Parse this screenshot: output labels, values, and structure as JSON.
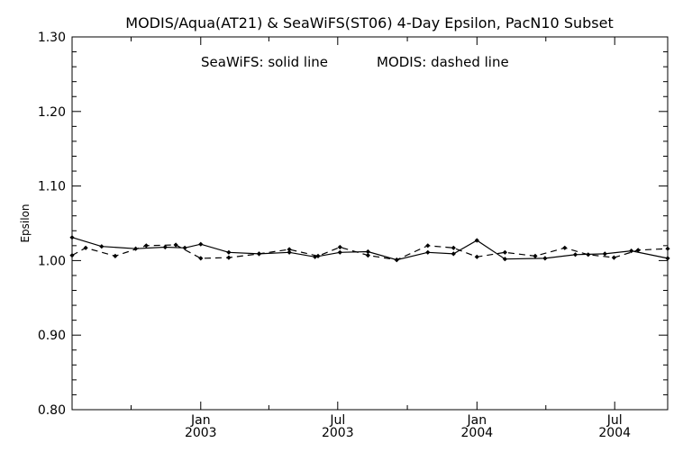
{
  "chart_data": {
    "type": "line",
    "title": "MODIS/Aqua(AT21) & SeaWiFS(ST06) 4-Day Epsilon, PacN10 Subset",
    "annotations": [
      "SeaWiFS: solid line",
      "MODIS: dashed line"
    ],
    "ylabel": "Epsilon",
    "ylim": [
      0.8,
      1.3
    ],
    "y_ticks": [
      "0.80",
      "0.90",
      "1.00",
      "1.10",
      "1.20",
      "1.30"
    ],
    "xlim": [
      "2002-07-15",
      "2004-09-09"
    ],
    "x_ticks": [
      {
        "date": "2003-01-01",
        "month": "Jan",
        "year": "2003"
      },
      {
        "date": "2003-07-01",
        "month": "Jul",
        "year": "2003"
      },
      {
        "date": "2004-01-01",
        "month": "Jan",
        "year": "2004"
      },
      {
        "date": "2004-07-01",
        "month": "Jul",
        "year": "2004"
      }
    ],
    "x_minor_ticks": [
      "2002-10-01",
      "2003-04-01",
      "2003-10-01",
      "2004-04-01"
    ],
    "series": [
      {
        "name": "SeaWiFS",
        "style": "solid",
        "x": [
          "2002-07-15",
          "2002-08-23",
          "2002-10-07",
          "2002-11-15",
          "2002-12-11",
          "2003-01-01",
          "2003-02-07",
          "2003-03-19",
          "2003-04-28",
          "2003-06-01",
          "2003-07-04",
          "2003-08-10",
          "2003-09-17",
          "2003-10-28",
          "2003-12-01",
          "2004-01-01",
          "2004-02-07",
          "2004-03-31",
          "2004-05-10",
          "2004-06-18",
          "2004-07-23",
          "2004-09-09"
        ],
        "y": [
          1.031,
          1.019,
          1.016,
          1.018,
          1.017,
          1.022,
          1.011,
          1.009,
          1.011,
          1.005,
          1.011,
          1.012,
          1.001,
          1.011,
          1.009,
          1.027,
          1.002,
          1.003,
          1.008,
          1.009,
          1.013,
          1.003
        ]
      },
      {
        "name": "MODIS",
        "style": "dashed",
        "x": [
          "2002-07-15",
          "2002-08-02",
          "2002-09-10",
          "2002-10-21",
          "2002-11-29",
          "2003-01-01",
          "2003-02-07",
          "2003-03-19",
          "2003-04-28",
          "2003-06-05",
          "2003-07-04",
          "2003-08-10",
          "2003-09-17",
          "2003-10-28",
          "2003-12-01",
          "2004-01-01",
          "2004-02-07",
          "2004-03-18",
          "2004-04-26",
          "2004-05-27",
          "2004-06-30",
          "2004-08-01",
          "2004-09-09"
        ],
        "y": [
          1.007,
          1.017,
          1.006,
          1.02,
          1.021,
          1.003,
          1.004,
          1.009,
          1.015,
          1.006,
          1.018,
          1.007,
          1.001,
          1.02,
          1.017,
          1.005,
          1.011,
          1.006,
          1.017,
          1.008,
          1.004,
          1.014,
          1.016
        ]
      }
    ]
  }
}
